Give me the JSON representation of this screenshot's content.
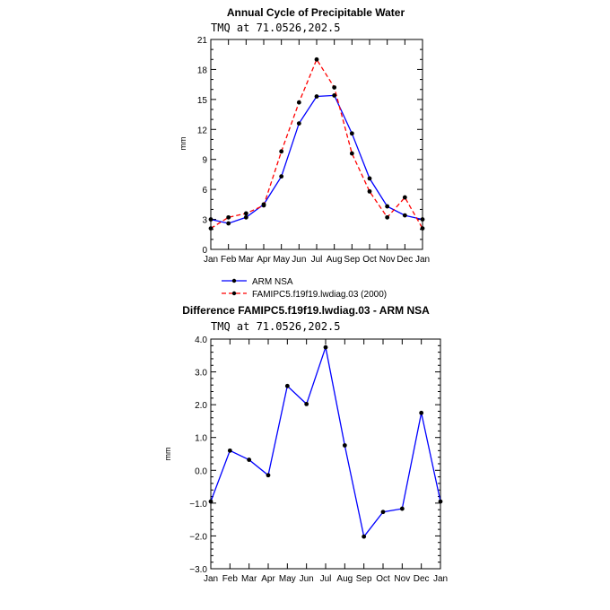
{
  "chart_data": [
    {
      "type": "line",
      "title": "Annual Cycle of Precipitable Water",
      "subtitle": "TMQ at 71.0526,202.5",
      "xlabel": "",
      "ylabel": "mm",
      "ylim": [
        0,
        21
      ],
      "yticks": [
        "0",
        "3",
        "6",
        "9",
        "12",
        "15",
        "18",
        "21"
      ],
      "categories": [
        "Jan",
        "Feb",
        "Mar",
        "Apr",
        "May",
        "Jun",
        "Jul",
        "Aug",
        "Sep",
        "Oct",
        "Nov",
        "Dec",
        "Jan"
      ],
      "series": [
        {
          "name": "ARM NSA",
          "color": "#0000ff",
          "dash": "solid",
          "values": [
            3.0,
            2.6,
            3.2,
            4.5,
            7.3,
            12.6,
            15.3,
            15.4,
            11.6,
            7.1,
            4.3,
            3.4,
            3.0
          ]
        },
        {
          "name": "FAMIPC5.f19f19.lwdiag.03 (2000)",
          "color": "#ff0000",
          "dash": "dashed",
          "values": [
            2.1,
            3.2,
            3.6,
            4.4,
            9.8,
            14.7,
            19.0,
            16.2,
            9.6,
            5.8,
            3.2,
            5.2,
            2.1
          ]
        }
      ],
      "legend_position": "below"
    },
    {
      "type": "line",
      "title": "Difference FAMIPC5.f19f19.lwdiag.03 - ARM NSA",
      "subtitle": "TMQ at 71.0526,202.5",
      "xlabel": "",
      "ylabel": "mm",
      "ylim": [
        -3.0,
        4.0
      ],
      "yticks": [
        "−3.0",
        "−2.0",
        "−1.0",
        "0.0",
        "1.0",
        "2.0",
        "3.0",
        "4.0"
      ],
      "categories": [
        "Jan",
        "Feb",
        "Mar",
        "Apr",
        "May",
        "Jun",
        "Jul",
        "Aug",
        "Sep",
        "Oct",
        "Nov",
        "Dec",
        "Jan"
      ],
      "series": [
        {
          "name": "Difference",
          "color": "#0000ff",
          "dash": "solid",
          "values": [
            -0.95,
            0.6,
            0.32,
            -0.15,
            2.57,
            2.02,
            3.75,
            0.76,
            -2.02,
            -1.27,
            -1.17,
            1.75,
            -0.95
          ]
        }
      ]
    }
  ]
}
